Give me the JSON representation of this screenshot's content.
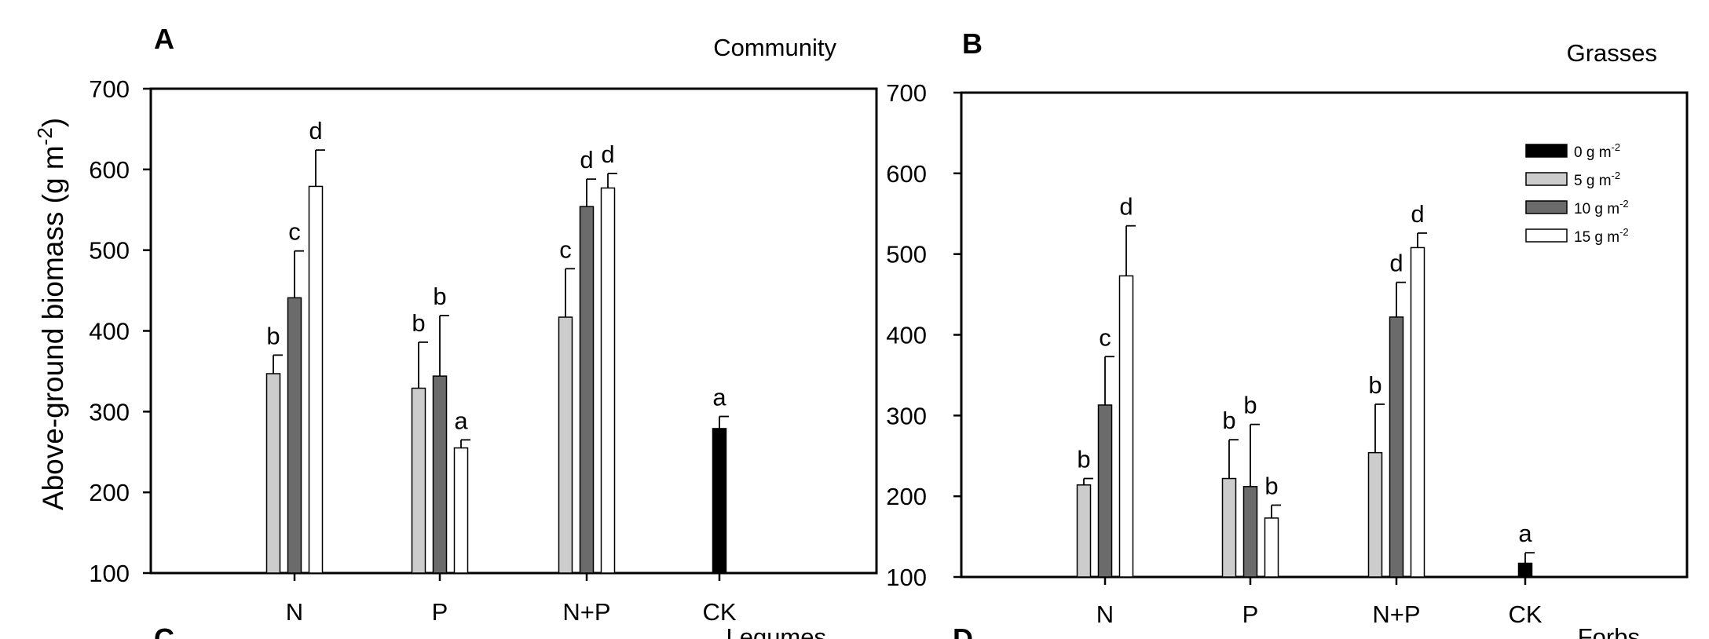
{
  "colors": {
    "series": [
      "#000000",
      "#cccccc",
      "#6b6b6b",
      "#ffffff"
    ],
    "axis": "#000000"
  },
  "series_names": [
    "0 g m",
    "5 g m",
    "10 g m",
    "15 g m"
  ],
  "series_superscript": "-2",
  "categories": [
    "N",
    "P",
    "N+P",
    "CK"
  ],
  "panels_below": [
    {
      "letter": "C",
      "title": "Legumes"
    },
    {
      "letter": "D",
      "title": "Forbs"
    }
  ],
  "chart_data": [
    {
      "type": "bar",
      "panel": "A",
      "title": "Community",
      "xlabel": "",
      "ylabel": "Above-ground biomass (g m",
      "ylabel_superscript": "-2",
      "ylabel_suffix": ")",
      "ylim": [
        100,
        700
      ],
      "yticks": [
        100,
        200,
        300,
        400,
        500,
        600,
        700
      ],
      "categories": [
        "N",
        "P",
        "N+P",
        "CK"
      ],
      "legend": "none",
      "groups": [
        {
          "category": "N",
          "bars": [
            {
              "series": 1,
              "value": 347,
              "err": 23,
              "letter": "b"
            },
            {
              "series": 2,
              "value": 441,
              "err": 58,
              "letter": "c"
            },
            {
              "series": 3,
              "value": 579,
              "err": 45,
              "letter": "d"
            }
          ]
        },
        {
          "category": "P",
          "bars": [
            {
              "series": 1,
              "value": 329,
              "err": 57,
              "letter": "b"
            },
            {
              "series": 2,
              "value": 344,
              "err": 75,
              "letter": "b"
            },
            {
              "series": 3,
              "value": 255,
              "err": 10,
              "letter": "a"
            }
          ]
        },
        {
          "category": "N+P",
          "bars": [
            {
              "series": 1,
              "value": 417,
              "err": 60,
              "letter": "c"
            },
            {
              "series": 2,
              "value": 554,
              "err": 34,
              "letter": "d"
            },
            {
              "series": 3,
              "value": 577,
              "err": 18,
              "letter": "d"
            }
          ]
        },
        {
          "category": "CK",
          "bars": [
            {
              "series": 0,
              "value": 279,
              "err": 15,
              "letter": "a"
            }
          ]
        }
      ]
    },
    {
      "type": "bar",
      "panel": "B",
      "title": "Grasses",
      "xlabel": "",
      "ylabel": "",
      "ylim": [
        100,
        700
      ],
      "yticks": [
        100,
        200,
        300,
        400,
        500,
        600,
        700
      ],
      "categories": [
        "N",
        "P",
        "N+P",
        "CK"
      ],
      "legend": "top-right",
      "groups": [
        {
          "category": "N",
          "bars": [
            {
              "series": 1,
              "value": 214,
              "err": 8,
              "letter": "b"
            },
            {
              "series": 2,
              "value": 313,
              "err": 60,
              "letter": "c"
            },
            {
              "series": 3,
              "value": 473,
              "err": 62,
              "letter": "d"
            }
          ]
        },
        {
          "category": "P",
          "bars": [
            {
              "series": 1,
              "value": 222,
              "err": 48,
              "letter": "b"
            },
            {
              "series": 2,
              "value": 212,
              "err": 77,
              "letter": "b"
            },
            {
              "series": 3,
              "value": 173,
              "err": 16,
              "letter": "b"
            }
          ]
        },
        {
          "category": "N+P",
          "bars": [
            {
              "series": 1,
              "value": 254,
              "err": 60,
              "letter": "b"
            },
            {
              "series": 2,
              "value": 422,
              "err": 43,
              "letter": "d"
            },
            {
              "series": 3,
              "value": 508,
              "err": 18,
              "letter": "d"
            }
          ]
        },
        {
          "category": "CK",
          "bars": [
            {
              "series": 0,
              "value": 117,
              "err": 13,
              "letter": "a"
            }
          ]
        }
      ]
    }
  ]
}
